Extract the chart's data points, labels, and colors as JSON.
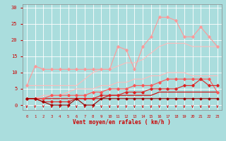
{
  "x": [
    0,
    1,
    2,
    3,
    4,
    5,
    6,
    7,
    8,
    9,
    10,
    11,
    12,
    13,
    14,
    15,
    16,
    17,
    18,
    19,
    20,
    21,
    22,
    23
  ],
  "series": [
    {
      "y": [
        6,
        12,
        11,
        11,
        11,
        11,
        11,
        11,
        11,
        11,
        11,
        18,
        17,
        11,
        18,
        21,
        27,
        27,
        26,
        21,
        21,
        24,
        21,
        18
      ],
      "color": "#ff9999",
      "lw": 0.8,
      "marker": "D",
      "ms": 1.8
    },
    {
      "y": [
        6,
        6,
        6,
        6,
        6,
        6,
        6,
        8,
        10,
        11,
        11,
        12,
        13,
        13,
        14,
        16,
        18,
        19,
        19,
        19,
        18,
        18,
        18,
        18
      ],
      "color": "#ffbbbb",
      "lw": 0.8,
      "marker": null,
      "ms": 0
    },
    {
      "y": [
        2,
        2,
        3,
        3,
        3,
        4,
        5,
        5,
        5,
        6,
        6,
        7,
        7,
        8,
        8,
        9,
        9,
        10,
        10,
        10,
        9,
        9,
        9,
        9
      ],
      "color": "#ffbbbb",
      "lw": 0.8,
      "marker": null,
      "ms": 0
    },
    {
      "y": [
        2,
        2,
        2,
        3,
        3,
        3,
        3,
        3,
        4,
        4,
        5,
        5,
        5,
        6,
        6,
        6,
        7,
        8,
        8,
        8,
        8,
        8,
        8,
        4
      ],
      "color": "#ff5555",
      "lw": 0.8,
      "marker": "D",
      "ms": 1.8
    },
    {
      "y": [
        2,
        2,
        1,
        1,
        1,
        1,
        2,
        2,
        2,
        3,
        3,
        3,
        4,
        4,
        4,
        5,
        5,
        5,
        5,
        6,
        6,
        8,
        6,
        6
      ],
      "color": "#dd2222",
      "lw": 0.8,
      "marker": "D",
      "ms": 1.8
    },
    {
      "y": [
        2,
        2,
        2,
        2,
        2,
        2,
        2,
        2,
        2,
        2,
        3,
        3,
        3,
        3,
        3,
        3,
        4,
        4,
        4,
        4,
        4,
        4,
        4,
        4
      ],
      "color": "#cc0000",
      "lw": 0.8,
      "marker": null,
      "ms": 0
    },
    {
      "y": [
        2,
        2,
        1,
        0,
        0,
        0,
        2,
        0,
        0,
        2,
        2,
        2,
        2,
        2,
        2,
        2,
        2,
        2,
        2,
        2,
        2,
        2,
        2,
        2
      ],
      "color": "#990000",
      "lw": 0.8,
      "marker": "D",
      "ms": 1.5
    }
  ],
  "xlabel": "Vent moyen/en rafales ( km/h )",
  "xlim": [
    -0.5,
    23.5
  ],
  "ylim": [
    -1.5,
    31
  ],
  "yticks": [
    0,
    5,
    10,
    15,
    20,
    25,
    30
  ],
  "xticks": [
    0,
    1,
    2,
    3,
    4,
    5,
    6,
    7,
    8,
    9,
    10,
    11,
    12,
    13,
    14,
    15,
    16,
    17,
    18,
    19,
    20,
    21,
    22,
    23
  ],
  "bg_color": "#aadddd",
  "grid_color": "#ffffff",
  "tick_color": "#cc0000",
  "label_color": "#cc0000"
}
